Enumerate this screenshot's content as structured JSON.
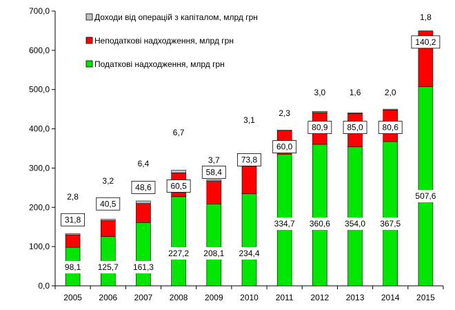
{
  "chart_data": {
    "type": "bar",
    "stacked": true,
    "categories": [
      "2005",
      "2006",
      "2007",
      "2008",
      "2009",
      "2010",
      "2011",
      "2012",
      "2013",
      "2014",
      "2015"
    ],
    "series": [
      {
        "name": "Податкові надходження, млрд грн",
        "color": "#00e600",
        "values": [
          98.1,
          125.7,
          161.3,
          227.2,
          208.1,
          234.4,
          334.7,
          360.6,
          354.0,
          367.5,
          507.6
        ],
        "labels": [
          "98,1",
          "125,7",
          "161,3",
          "227,2",
          "208,1",
          "234,4",
          "334,7",
          "360,6",
          "354,0",
          "367,5",
          "507,6"
        ]
      },
      {
        "name": "Неподаткові надходження, млрд грн",
        "color": "#ff0000",
        "values": [
          31.8,
          40.5,
          48.6,
          60.5,
          58.4,
          73.8,
          60.0,
          80.9,
          85.0,
          80.6,
          140.2
        ],
        "labels": [
          "31,8",
          "40,5",
          "48,6",
          "60,5",
          "58,4",
          "73,8",
          "60,0",
          "80,9",
          "85,0",
          "80,6",
          "140,2"
        ]
      },
      {
        "name": "Доходи від операцій з капіталом, млрд грн",
        "color": "#c0c0c0",
        "values": [
          2.8,
          3.2,
          6.4,
          6.7,
          3.7,
          3.1,
          2.3,
          3.0,
          1.6,
          2.0,
          1.8
        ],
        "labels": [
          "2,8",
          "3,2",
          "6,4",
          "6,7",
          "3,7",
          "3,1",
          "2,3",
          "3,0",
          "1,6",
          "2,0",
          "1,8"
        ]
      }
    ],
    "ylim": [
      0,
      700
    ],
    "yticks": [
      0,
      100,
      200,
      300,
      400,
      500,
      600,
      700
    ],
    "ytick_labels": [
      "0,0",
      "100,0",
      "200,0",
      "300,0",
      "400,0",
      "500,0",
      "600,0",
      "700,0"
    ],
    "grid": false,
    "legend_placement": "top-left",
    "legend_order": [
      2,
      1,
      0
    ],
    "title": "",
    "xlabel": "",
    "ylabel": ""
  }
}
